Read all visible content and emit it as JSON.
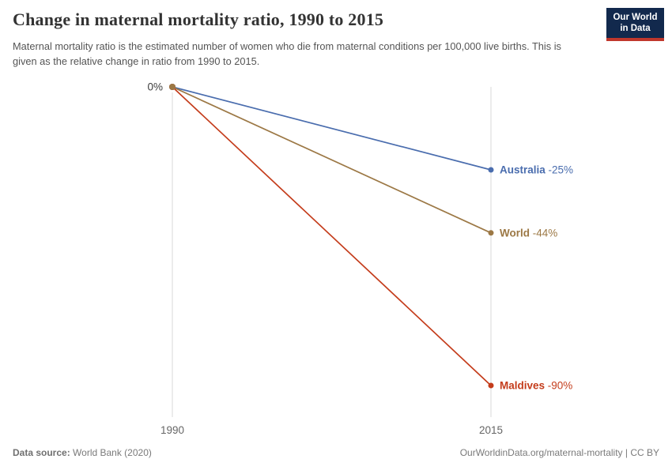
{
  "header": {
    "title": "Change in maternal mortality ratio, 1990 to 2015",
    "subtitle": "Maternal mortality ratio is the estimated number of women who die from maternal conditions per 100,000 live births. This is given as the relative change in ratio from 1990 to 2015.",
    "logo": {
      "line1": "Our World",
      "line2": "in Data",
      "bg_color": "#12294D",
      "accent_color": "#C0372C"
    }
  },
  "chart_data": {
    "type": "line",
    "title": "Change in maternal mortality ratio, 1990 to 2015",
    "x": [
      1990,
      2015
    ],
    "x_tick_labels": [
      "1990",
      "2015"
    ],
    "unit": "%",
    "baseline_label": "0%",
    "ylim": [
      -100,
      0
    ],
    "grid": "vertical-only",
    "legend_position": "right-of-line-endpoints",
    "series": [
      {
        "name": "Australia",
        "values": [
          0,
          -25
        ],
        "label_value": "-25%",
        "color": "#4A6DAE"
      },
      {
        "name": "World",
        "values": [
          0,
          -44
        ],
        "label_value": "-44%",
        "color": "#9C7845"
      },
      {
        "name": "Maldives",
        "values": [
          0,
          -90
        ],
        "label_value": "-90%",
        "color": "#C43C1B"
      }
    ],
    "grid_color": "#d8d8d8",
    "axis_label_color": "#666666",
    "baseline_label_color": "#3d3d3d"
  },
  "footer": {
    "datasource_label": "Data source:",
    "datasource_value": "World Bank (2020)",
    "attribution": "OurWorldinData.org/maternal-mortality | CC BY"
  }
}
